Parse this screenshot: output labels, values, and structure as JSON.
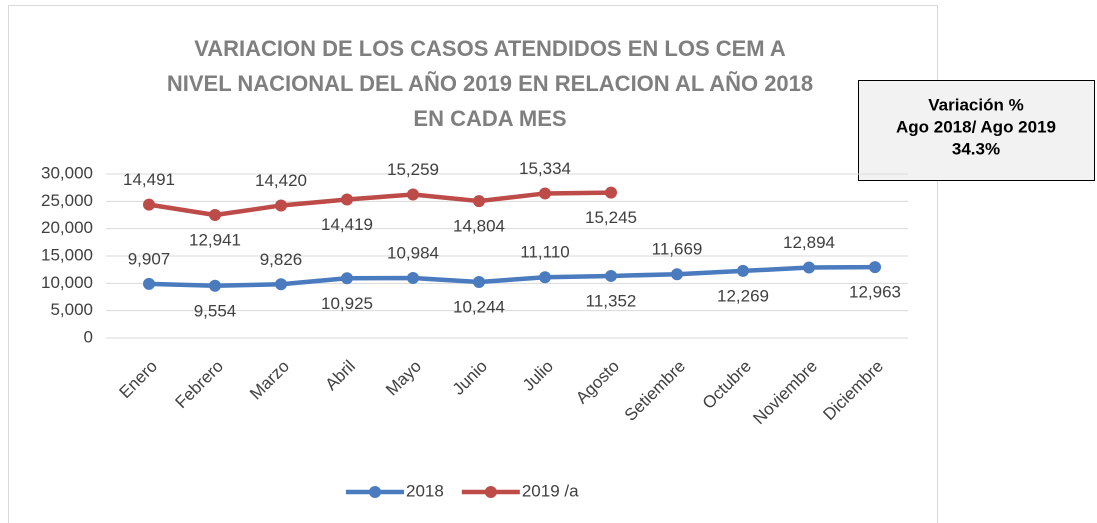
{
  "chart_data": {
    "type": "line",
    "stacked": true,
    "title": [
      "VARIACION DE LOS CASOS ATENDIDOS EN LOS CEM A",
      "NIVEL NACIONAL DEL AÑO 2019 EN RELACION AL AÑO 2018",
      "EN CADA MES"
    ],
    "categories": [
      "Enero",
      "Febrero",
      "Marzo",
      "Abril",
      "Mayo",
      "Junio",
      "Julio",
      "Agosto",
      "Setiembre",
      "Octubre",
      "Noviembre",
      "Diciembre"
    ],
    "series": [
      {
        "name": "2018",
        "color": "#4a7bbf",
        "values": [
          9907,
          9554,
          9826,
          10925,
          10984,
          10244,
          11110,
          11352,
          11669,
          12269,
          12894,
          12963
        ],
        "value_labels": [
          "9,907",
          "9,554",
          "9,826",
          "10,925",
          "10,984",
          "10,244",
          "11,110",
          "11,352",
          "11,669",
          "12,269",
          "12,894",
          "12,963"
        ]
      },
      {
        "name": "2019 /a",
        "color": "#bd4b48",
        "values": [
          14491,
          12941,
          14420,
          14419,
          15259,
          14804,
          15334,
          15245,
          null,
          null,
          null,
          null
        ],
        "value_labels": [
          "14,491",
          "12,941",
          "14,420",
          "14,419",
          "15,259",
          "14,804",
          "15,334",
          "15,245",
          null,
          null,
          null,
          null
        ]
      }
    ],
    "ylim": [
      0,
      30000
    ],
    "yticks": [
      0,
      {
        "value": 5000,
        "label": "5,000"
      },
      {
        "value": 10000,
        "label": "10,000"
      },
      {
        "value": 15000,
        "label": "15,000"
      },
      {
        "value": 20000,
        "label": "20,000"
      },
      {
        "value": 25000,
        "label": "25,000"
      },
      {
        "value": 30000,
        "label": "30,000"
      }
    ],
    "grid": true,
    "legend": "bottom",
    "annotation": [
      "Variación %",
      "Ago 2018/ Ago 2019",
      "34.3%"
    ]
  }
}
